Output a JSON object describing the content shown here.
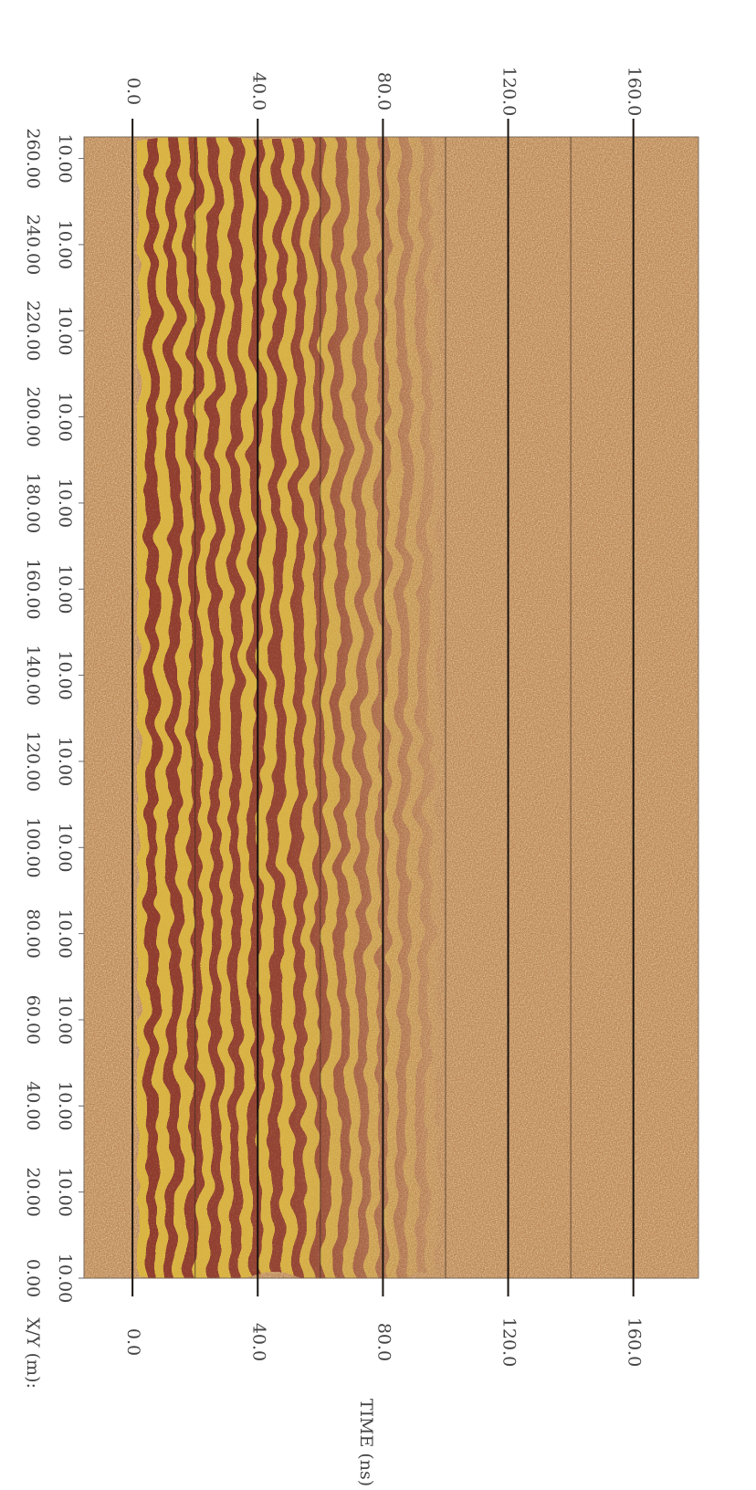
{
  "chart_data": {
    "type": "radargram",
    "x_label": "X/Y (m):",
    "time_label": "TIME (ns)",
    "position_lim": [
      0,
      265
    ],
    "position_ticks": [
      {
        "value": 0,
        "label": "0.00"
      },
      {
        "value": 20,
        "label": "20.00"
      },
      {
        "value": 40,
        "label": "40.00"
      },
      {
        "value": 60,
        "label": "60.00"
      },
      {
        "value": 80,
        "label": "80.00"
      },
      {
        "value": 100,
        "label": "100.00"
      },
      {
        "value": 120,
        "label": "120.00"
      },
      {
        "value": 140,
        "label": "140.00"
      },
      {
        "value": 160,
        "label": "160.00"
      },
      {
        "value": 180,
        "label": "180.00"
      },
      {
        "value": 200,
        "label": "200.00"
      },
      {
        "value": 220,
        "label": "220.00"
      },
      {
        "value": 240,
        "label": "240.00"
      },
      {
        "value": 260,
        "label": "260.00"
      }
    ],
    "second_coordinate_labels": [
      "10.00",
      "10.00",
      "10.00",
      "10.00",
      "10.00",
      "10.00",
      "10.00",
      "10.00",
      "10.00",
      "10.00",
      "10.00",
      "10.00",
      "10.00",
      "10.00"
    ],
    "time_lim": [
      -15.5,
      180.8
    ],
    "time_ticks": [
      {
        "value": 0,
        "label": "0.0"
      },
      {
        "value": 40,
        "label": "40.0"
      },
      {
        "value": 80,
        "label": "80.0"
      },
      {
        "value": 120,
        "label": "120.0"
      },
      {
        "value": 160,
        "label": "160.0"
      }
    ],
    "time_minor_ticks": [
      20,
      60,
      100,
      140
    ],
    "grid": true
  }
}
